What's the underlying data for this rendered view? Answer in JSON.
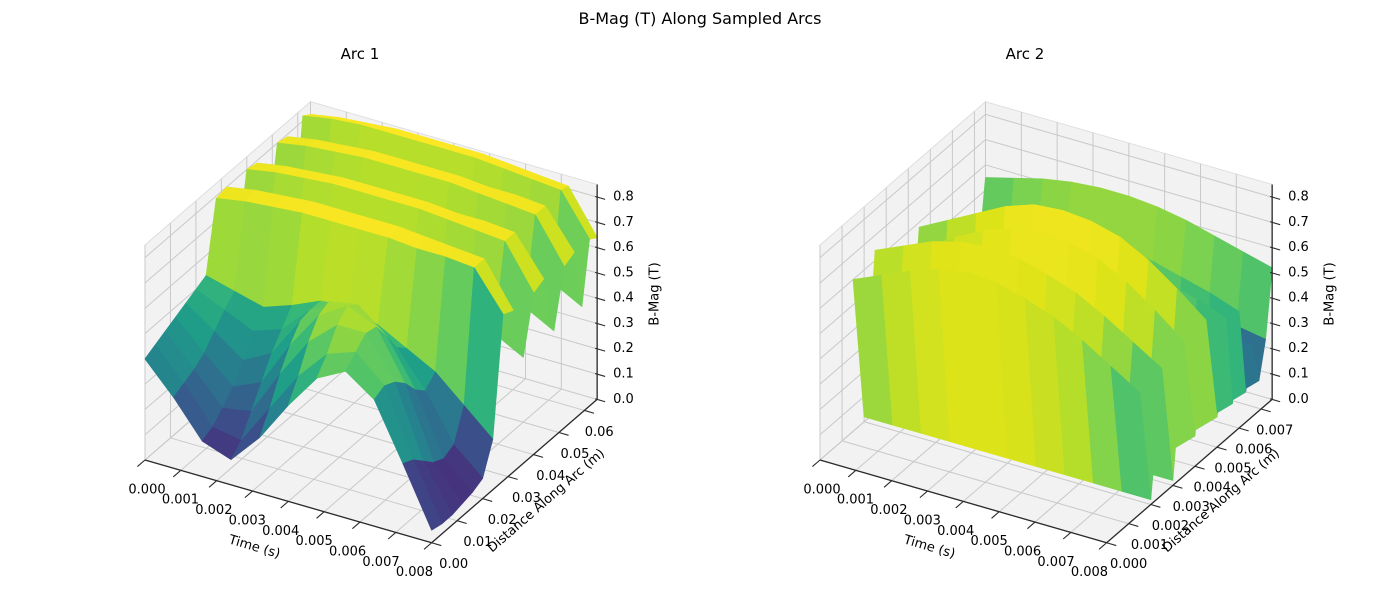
{
  "figure": {
    "title": "B-Mag (T) Along Sampled Arcs"
  },
  "colors": {
    "background": "#ffffff",
    "pane": "#f2f2f2",
    "grid": "#c9c9c9",
    "axis": "#2b2b2b",
    "text": "#000000"
  },
  "view": {
    "elev": 30,
    "azim": -60,
    "colormap": "viridis"
  },
  "chart_data": [
    {
      "type": "surface",
      "title": "Arc 1",
      "xlabel": "Time (s)",
      "ylabel": "Distance Along Arc (m)",
      "zlabel": "B-Mag (T)",
      "xlim": [
        0,
        0.008
      ],
      "ylim": [
        0,
        0.065
      ],
      "zlim": [
        0,
        0.85
      ],
      "x_ticks": [
        "0.000",
        "0.001",
        "0.002",
        "0.003",
        "0.004",
        "0.005",
        "0.006",
        "0.007",
        "0.008"
      ],
      "y_ticks": [
        "0.00",
        "0.01",
        "0.02",
        "0.03",
        "0.04",
        "0.05",
        "0.06"
      ],
      "z_ticks": [
        "0.0",
        "0.1",
        "0.2",
        "0.3",
        "0.4",
        "0.5",
        "0.6",
        "0.7",
        "0.8"
      ],
      "grid": true,
      "quad_color": "mean",
      "x": [
        0,
        0.0008,
        0.0016,
        0.0024,
        0.0032,
        0.004,
        0.0048,
        0.0056,
        0.0064,
        0.0072,
        0.008
      ],
      "y": [
        0.0,
        0.004,
        0.008,
        0.012,
        0.016,
        0.02,
        0.024,
        0.028,
        0.032,
        0.036,
        0.04,
        0.044,
        0.048,
        0.052,
        0.056,
        0.059,
        0.062,
        0.065
      ],
      "z": [
        [
          0.4,
          0.28,
          0.14,
          0.1,
          0.22,
          0.38,
          0.52,
          0.58,
          0.5,
          0.28,
          0.05
        ],
        [
          0.42,
          0.3,
          0.16,
          0.14,
          0.3,
          0.46,
          0.58,
          0.62,
          0.52,
          0.26,
          0.04
        ],
        [
          0.44,
          0.32,
          0.2,
          0.22,
          0.4,
          0.56,
          0.66,
          0.66,
          0.5,
          0.22,
          0.04
        ],
        [
          0.46,
          0.35,
          0.25,
          0.3,
          0.48,
          0.63,
          0.7,
          0.65,
          0.46,
          0.18,
          0.05
        ],
        [
          0.48,
          0.4,
          0.32,
          0.38,
          0.54,
          0.65,
          0.67,
          0.58,
          0.4,
          0.16,
          0.06
        ],
        [
          0.5,
          0.45,
          0.4,
          0.44,
          0.55,
          0.6,
          0.58,
          0.5,
          0.36,
          0.18,
          0.08
        ],
        [
          0.52,
          0.49,
          0.46,
          0.5,
          0.55,
          0.56,
          0.52,
          0.46,
          0.4,
          0.3,
          0.2
        ],
        [
          0.79,
          0.81,
          0.82,
          0.83,
          0.83,
          0.83,
          0.83,
          0.82,
          0.82,
          0.81,
          0.66
        ],
        [
          0.8,
          0.82,
          0.83,
          0.84,
          0.84,
          0.84,
          0.84,
          0.83,
          0.82,
          0.81,
          0.64
        ],
        [
          0.48,
          0.5,
          0.51,
          0.52,
          0.52,
          0.52,
          0.51,
          0.5,
          0.49,
          0.48,
          0.42
        ],
        [
          0.8,
          0.82,
          0.83,
          0.84,
          0.84,
          0.84,
          0.84,
          0.83,
          0.82,
          0.81,
          0.64
        ],
        [
          0.79,
          0.81,
          0.82,
          0.83,
          0.83,
          0.83,
          0.83,
          0.82,
          0.82,
          0.81,
          0.66
        ],
        [
          0.48,
          0.5,
          0.51,
          0.52,
          0.52,
          0.52,
          0.51,
          0.5,
          0.49,
          0.48,
          0.42
        ],
        [
          0.8,
          0.82,
          0.83,
          0.84,
          0.84,
          0.84,
          0.84,
          0.83,
          0.82,
          0.81,
          0.64
        ],
        [
          0.79,
          0.81,
          0.82,
          0.83,
          0.83,
          0.83,
          0.83,
          0.82,
          0.82,
          0.81,
          0.66
        ],
        [
          0.48,
          0.5,
          0.51,
          0.52,
          0.52,
          0.52,
          0.51,
          0.5,
          0.49,
          0.48,
          0.42
        ],
        [
          0.82,
          0.84,
          0.85,
          0.85,
          0.85,
          0.85,
          0.85,
          0.84,
          0.83,
          0.82,
          0.66
        ],
        [
          0.8,
          0.82,
          0.83,
          0.84,
          0.84,
          0.84,
          0.84,
          0.83,
          0.82,
          0.81,
          0.64
        ]
      ]
    },
    {
      "type": "surface",
      "title": "Arc 2",
      "xlabel": "Time (s)",
      "ylabel": "Distance Along Arc (m)",
      "zlabel": "B-Mag (T)",
      "xlim": [
        0,
        0.008
      ],
      "ylim": [
        0,
        0.0075
      ],
      "zlim": [
        0,
        0.85
      ],
      "x_ticks": [
        "0.000",
        "0.001",
        "0.002",
        "0.003",
        "0.004",
        "0.005",
        "0.006",
        "0.007",
        "0.008"
      ],
      "y_ticks": [
        "0.000",
        "0.001",
        "0.002",
        "0.003",
        "0.004",
        "0.005",
        "0.006",
        "0.007"
      ],
      "z_ticks": [
        "0.0",
        "0.1",
        "0.2",
        "0.3",
        "0.4",
        "0.5",
        "0.6",
        "0.7",
        "0.8"
      ],
      "grid": true,
      "quad_color": "max",
      "x": [
        0,
        0.0008,
        0.0016,
        0.0024,
        0.0032,
        0.004,
        0.0048,
        0.0056,
        0.0064,
        0.0072,
        0.008
      ],
      "y": [
        0.0015,
        0.002,
        0.0025,
        0.003,
        0.0035,
        0.004,
        0.0045,
        0.005,
        0.0054,
        0.0057,
        0.006,
        0.0063,
        0.0066,
        0.0069,
        0.0072,
        0.0075
      ],
      "z": [
        [
          0.6,
          0.65,
          0.7,
          0.74,
          0.76,
          0.75,
          0.72,
          0.68,
          0.62,
          0.55,
          0.48
        ],
        [
          0.02,
          0.02,
          0.02,
          0.02,
          0.02,
          0.02,
          0.02,
          0.02,
          0.02,
          0.02,
          0.02
        ],
        [
          0.64,
          0.69,
          0.74,
          0.77,
          0.78,
          0.77,
          0.74,
          0.7,
          0.64,
          0.57,
          0.5
        ],
        [
          0.02,
          0.02,
          0.02,
          0.02,
          0.02,
          0.02,
          0.02,
          0.02,
          0.02,
          0.02,
          0.02
        ],
        [
          0.55,
          0.61,
          0.68,
          0.74,
          0.78,
          0.8,
          0.79,
          0.76,
          0.7,
          0.62,
          0.53
        ],
        [
          0.02,
          0.02,
          0.02,
          0.02,
          0.02,
          0.02,
          0.12,
          0.02,
          0.12,
          0.02,
          0.12
        ],
        [
          0.58,
          0.64,
          0.7,
          0.76,
          0.8,
          0.81,
          0.8,
          0.77,
          0.71,
          0.63,
          0.54
        ],
        [
          0.02,
          0.02,
          0.02,
          0.02,
          0.02,
          0.02,
          0.12,
          0.02,
          0.12,
          0.02,
          0.12
        ],
        [
          0.52,
          0.55,
          0.58,
          0.6,
          0.61,
          0.61,
          0.6,
          0.58,
          0.55,
          0.52,
          0.48
        ],
        [
          0.02,
          0.02,
          0.02,
          0.02,
          0.02,
          0.02,
          0.12,
          0.02,
          0.12,
          0.02,
          0.12
        ],
        [
          0.5,
          0.53,
          0.56,
          0.58,
          0.59,
          0.59,
          0.58,
          0.56,
          0.53,
          0.5,
          0.46
        ],
        [
          0.02,
          0.02,
          0.02,
          0.02,
          0.02,
          0.02,
          0.12,
          0.02,
          0.12,
          0.02,
          0.12
        ],
        [
          0.3,
          0.32,
          0.34,
          0.36,
          0.37,
          0.37,
          0.36,
          0.34,
          0.32,
          0.3,
          0.28
        ],
        [
          0.02,
          0.02,
          0.02,
          0.02,
          0.02,
          0.02,
          0.12,
          0.02,
          0.12,
          0.02,
          0.12
        ],
        [
          0.28,
          0.3,
          0.32,
          0.34,
          0.35,
          0.35,
          0.34,
          0.32,
          0.3,
          0.28,
          0.26
        ],
        [
          0.55,
          0.58,
          0.61,
          0.63,
          0.64,
          0.64,
          0.63,
          0.61,
          0.58,
          0.55,
          0.52
        ]
      ]
    }
  ]
}
